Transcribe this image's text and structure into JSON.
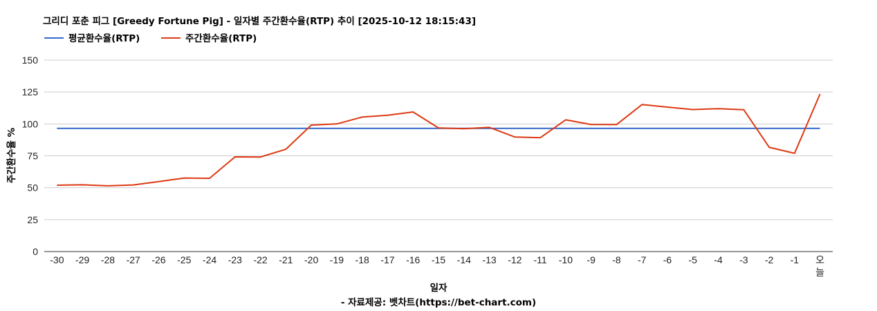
{
  "chart_data": {
    "type": "line",
    "title": "그리디 포춘 피그 [Greedy Fortune Pig] - 일자별 주간환수율(RTP) 추이 [2025-10-12 18:15:43]",
    "xlabel": "일자",
    "ylabel": "주간환수율 %",
    "source": "- 자료제공: 벳차트(https://bet-chart.com)",
    "categories": [
      "-30",
      "-29",
      "-28",
      "-27",
      "-26",
      "-25",
      "-24",
      "-23",
      "-22",
      "-21",
      "-20",
      "-19",
      "-18",
      "-17",
      "-16",
      "-15",
      "-14",
      "-13",
      "-12",
      "-11",
      "-10",
      "-9",
      "-8",
      "-7",
      "-6",
      "-5",
      "-4",
      "-3",
      "-2",
      "-1",
      "오늘"
    ],
    "ylim": [
      0,
      150
    ],
    "yticks": [
      "0",
      "25",
      "50",
      "75",
      "100",
      "125",
      "150"
    ],
    "grid": true,
    "legend_position": "top-left",
    "series": [
      {
        "name": "평균환수율(RTP)",
        "color": "#3366cc",
        "values": [
          96.5,
          96.5,
          96.5,
          96.5,
          96.5,
          96.5,
          96.5,
          96.5,
          96.5,
          96.5,
          96.5,
          96.5,
          96.5,
          96.5,
          96.5,
          96.5,
          96.5,
          96.5,
          96.5,
          96.5,
          96.5,
          96.5,
          96.5,
          96.5,
          96.5,
          96.5,
          96.5,
          96.5,
          96.5,
          96.5,
          96.5
        ]
      },
      {
        "name": "주간환수율(RTP)",
        "color": "#dc3912",
        "values": [
          52,
          52.3,
          51.5,
          52.2,
          54.8,
          57.6,
          57.4,
          74.2,
          74.1,
          80.2,
          99.1,
          100,
          105.4,
          106.8,
          109.4,
          96.9,
          96.3,
          97.3,
          89.8,
          89.2,
          103.2,
          99.6,
          99.5,
          115.2,
          113.2,
          111.3,
          112,
          111.2,
          81.7,
          77,
          123.4
        ]
      }
    ]
  }
}
